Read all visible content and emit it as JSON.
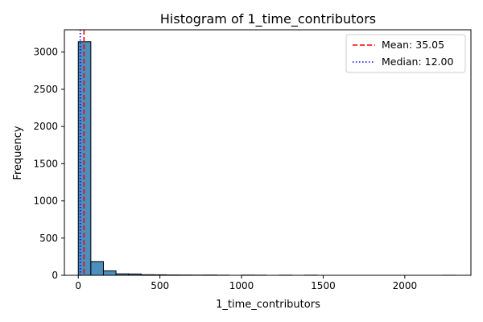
{
  "chart_data": {
    "type": "histogram",
    "title": "Histogram of 1_time_contributors",
    "xlabel": "1_time_contributors",
    "ylabel": "Frequency",
    "xlim": [
      -85,
      2405
    ],
    "ylim": [
      0,
      3300
    ],
    "xticks": [
      0,
      500,
      1000,
      1500,
      2000
    ],
    "yticks": [
      0,
      500,
      1000,
      1500,
      2000,
      2500,
      3000
    ],
    "bin_width": 77,
    "bins": [
      {
        "start": 0,
        "count": 3140
      },
      {
        "start": 77,
        "count": 185
      },
      {
        "start": 154,
        "count": 60
      },
      {
        "start": 231,
        "count": 20
      },
      {
        "start": 308,
        "count": 18
      },
      {
        "start": 385,
        "count": 8
      },
      {
        "start": 462,
        "count": 7
      },
      {
        "start": 539,
        "count": 5
      },
      {
        "start": 616,
        "count": 4
      },
      {
        "start": 693,
        "count": 3
      },
      {
        "start": 770,
        "count": 4
      },
      {
        "start": 847,
        "count": 2
      },
      {
        "start": 924,
        "count": 0
      },
      {
        "start": 1001,
        "count": 3
      },
      {
        "start": 1078,
        "count": 2
      },
      {
        "start": 1155,
        "count": 0
      },
      {
        "start": 1232,
        "count": 2
      },
      {
        "start": 1309,
        "count": 0
      },
      {
        "start": 1386,
        "count": 2
      },
      {
        "start": 1463,
        "count": 0
      },
      {
        "start": 1540,
        "count": 0
      },
      {
        "start": 1617,
        "count": 0
      },
      {
        "start": 1694,
        "count": 0
      },
      {
        "start": 1771,
        "count": 0
      },
      {
        "start": 1848,
        "count": 0
      },
      {
        "start": 1925,
        "count": 0
      },
      {
        "start": 2002,
        "count": 0
      },
      {
        "start": 2079,
        "count": 0
      },
      {
        "start": 2156,
        "count": 0
      },
      {
        "start": 2233,
        "count": 1
      }
    ],
    "reference_lines": [
      {
        "label": "Mean: 35.05",
        "value": 35.05,
        "color": "#ff0000",
        "style": "dashed"
      },
      {
        "label": "Median: 12.00",
        "value": 12.0,
        "color": "#0000ff",
        "style": "dotted"
      }
    ],
    "bar_color": "#4c8fbd",
    "bar_edge_color": "#000000",
    "grid": false,
    "legend_position": "top-right"
  }
}
